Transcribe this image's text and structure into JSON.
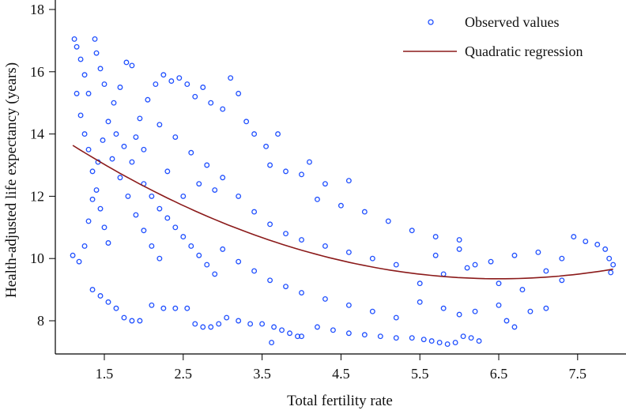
{
  "chart_data": {
    "type": "scatter",
    "title": "",
    "xlabel": "Total fertility rate",
    "ylabel": "Health-adjusted life expectancy (years)",
    "xlim": [
      0.88,
      8.1
    ],
    "ylim": [
      7.0,
      18.2
    ],
    "xticks": [
      "1.5",
      "2.5",
      "3.5",
      "4.5",
      "5.5",
      "6.5",
      "7.5"
    ],
    "yticks": [
      "8",
      "10",
      "12",
      "14",
      "16",
      "18"
    ],
    "grid": false,
    "legend_position": "top-right",
    "colors": {
      "observed": "#2050ff",
      "regression": "#8b1a1a"
    },
    "series": [
      {
        "name": "Observed values",
        "kind": "scatter",
        "points": [
          [
            1.12,
            17.05
          ],
          [
            1.15,
            16.8
          ],
          [
            1.2,
            16.4
          ],
          [
            1.25,
            15.9
          ],
          [
            1.3,
            15.3
          ],
          [
            1.38,
            17.05
          ],
          [
            1.4,
            16.6
          ],
          [
            1.45,
            16.1
          ],
          [
            1.5,
            15.6
          ],
          [
            1.15,
            15.3
          ],
          [
            1.2,
            14.6
          ],
          [
            1.25,
            14.0
          ],
          [
            1.3,
            13.5
          ],
          [
            1.35,
            12.8
          ],
          [
            1.4,
            12.2
          ],
          [
            1.45,
            11.6
          ],
          [
            1.5,
            11.0
          ],
          [
            1.55,
            10.5
          ],
          [
            1.1,
            10.1
          ],
          [
            1.18,
            9.9
          ],
          [
            1.25,
            10.4
          ],
          [
            1.3,
            11.2
          ],
          [
            1.35,
            11.9
          ],
          [
            1.42,
            13.1
          ],
          [
            1.48,
            13.8
          ],
          [
            1.55,
            14.4
          ],
          [
            1.62,
            15.0
          ],
          [
            1.7,
            15.5
          ],
          [
            1.78,
            16.3
          ],
          [
            1.85,
            16.2
          ],
          [
            1.6,
            13.2
          ],
          [
            1.7,
            12.6
          ],
          [
            1.8,
            12.0
          ],
          [
            1.9,
            11.4
          ],
          [
            2.0,
            10.9
          ],
          [
            2.1,
            10.4
          ],
          [
            2.2,
            10.0
          ],
          [
            1.65,
            14.0
          ],
          [
            1.75,
            13.6
          ],
          [
            1.85,
            13.1
          ],
          [
            1.95,
            14.5
          ],
          [
            2.05,
            15.1
          ],
          [
            2.15,
            15.6
          ],
          [
            2.25,
            15.9
          ],
          [
            2.35,
            15.7
          ],
          [
            2.45,
            15.8
          ],
          [
            2.55,
            15.6
          ],
          [
            2.65,
            15.2
          ],
          [
            2.75,
            15.5
          ],
          [
            2.85,
            15.0
          ],
          [
            2.0,
            12.4
          ],
          [
            2.1,
            12.0
          ],
          [
            2.2,
            11.6
          ],
          [
            2.3,
            11.3
          ],
          [
            2.4,
            11.0
          ],
          [
            2.5,
            10.7
          ],
          [
            2.6,
            10.4
          ],
          [
            2.7,
            10.1
          ],
          [
            2.8,
            9.8
          ],
          [
            2.9,
            9.5
          ],
          [
            1.35,
            9.0
          ],
          [
            1.45,
            8.8
          ],
          [
            1.55,
            8.6
          ],
          [
            1.65,
            8.4
          ],
          [
            1.75,
            8.1
          ],
          [
            1.85,
            8.0
          ],
          [
            1.95,
            8.0
          ],
          [
            2.1,
            8.5
          ],
          [
            2.25,
            8.4
          ],
          [
            2.4,
            8.4
          ],
          [
            2.55,
            8.4
          ],
          [
            2.65,
            7.9
          ],
          [
            2.75,
            7.8
          ],
          [
            2.85,
            7.8
          ],
          [
            2.95,
            7.9
          ],
          [
            3.05,
            8.1
          ],
          [
            3.2,
            8.0
          ],
          [
            3.35,
            7.9
          ],
          [
            3.5,
            7.9
          ],
          [
            3.65,
            7.8
          ],
          [
            3.75,
            7.7
          ],
          [
            3.85,
            7.6
          ],
          [
            3.95,
            7.5
          ],
          [
            4.0,
            7.5
          ],
          [
            3.62,
            7.3
          ],
          [
            4.2,
            7.8
          ],
          [
            4.4,
            7.7
          ],
          [
            4.6,
            7.6
          ],
          [
            4.8,
            7.55
          ],
          [
            5.0,
            7.5
          ],
          [
            5.2,
            7.45
          ],
          [
            5.4,
            7.45
          ],
          [
            5.55,
            7.4
          ],
          [
            5.65,
            7.35
          ],
          [
            5.75,
            7.3
          ],
          [
            5.85,
            7.25
          ],
          [
            5.95,
            7.3
          ],
          [
            6.05,
            7.5
          ],
          [
            6.15,
            7.45
          ],
          [
            6.25,
            7.35
          ],
          [
            3.0,
            14.8
          ],
          [
            3.1,
            15.8
          ],
          [
            3.2,
            15.3
          ],
          [
            3.3,
            14.4
          ],
          [
            3.4,
            14.0
          ],
          [
            3.55,
            13.6
          ],
          [
            3.7,
            14.0
          ],
          [
            3.6,
            13.0
          ],
          [
            3.8,
            12.8
          ],
          [
            4.0,
            12.7
          ],
          [
            4.1,
            13.1
          ],
          [
            4.3,
            12.4
          ],
          [
            4.6,
            12.5
          ],
          [
            4.2,
            11.9
          ],
          [
            4.5,
            11.7
          ],
          [
            4.8,
            11.5
          ],
          [
            5.1,
            11.2
          ],
          [
            5.4,
            10.9
          ],
          [
            5.7,
            10.7
          ],
          [
            6.0,
            10.6
          ],
          [
            3.0,
            12.6
          ],
          [
            3.2,
            12.0
          ],
          [
            3.4,
            11.5
          ],
          [
            3.6,
            11.1
          ],
          [
            3.8,
            10.8
          ],
          [
            4.0,
            10.6
          ],
          [
            4.3,
            10.4
          ],
          [
            4.6,
            10.2
          ],
          [
            4.9,
            10.0
          ],
          [
            5.2,
            9.8
          ],
          [
            3.0,
            10.3
          ],
          [
            3.2,
            9.9
          ],
          [
            3.4,
            9.6
          ],
          [
            3.6,
            9.3
          ],
          [
            3.8,
            9.1
          ],
          [
            4.0,
            8.9
          ],
          [
            4.3,
            8.7
          ],
          [
            4.6,
            8.5
          ],
          [
            4.9,
            8.3
          ],
          [
            5.2,
            8.1
          ],
          [
            5.5,
            8.6
          ],
          [
            5.8,
            8.4
          ],
          [
            6.0,
            8.2
          ],
          [
            6.2,
            8.3
          ],
          [
            6.5,
            8.5
          ],
          [
            6.6,
            8.0
          ],
          [
            6.7,
            7.8
          ],
          [
            6.9,
            8.3
          ],
          [
            7.1,
            8.4
          ],
          [
            5.5,
            9.2
          ],
          [
            5.8,
            9.5
          ],
          [
            6.1,
            9.7
          ],
          [
            6.4,
            9.9
          ],
          [
            6.7,
            10.1
          ],
          [
            7.0,
            10.2
          ],
          [
            7.3,
            10.0
          ],
          [
            7.45,
            10.7
          ],
          [
            7.6,
            10.55
          ],
          [
            7.75,
            10.45
          ],
          [
            7.85,
            10.3
          ],
          [
            7.9,
            10.0
          ],
          [
            7.95,
            9.8
          ],
          [
            7.92,
            9.55
          ],
          [
            7.3,
            9.3
          ],
          [
            7.1,
            9.6
          ],
          [
            6.8,
            9.0
          ],
          [
            6.5,
            9.2
          ],
          [
            6.2,
            9.8
          ],
          [
            6.0,
            10.3
          ],
          [
            5.7,
            10.1
          ],
          [
            2.6,
            13.4
          ],
          [
            2.8,
            13.0
          ],
          [
            2.4,
            13.9
          ],
          [
            2.2,
            14.3
          ],
          [
            2.7,
            12.4
          ],
          [
            2.9,
            12.2
          ],
          [
            2.5,
            12.0
          ],
          [
            2.3,
            12.8
          ],
          [
            2.0,
            13.5
          ],
          [
            1.9,
            13.9
          ]
        ]
      },
      {
        "name": "Quadratic regression",
        "kind": "line",
        "equation": {
          "a": 0.147,
          "b": -1.911,
          "c": 15.56
        },
        "x_range": [
          1.1,
          7.95
        ]
      }
    ]
  }
}
